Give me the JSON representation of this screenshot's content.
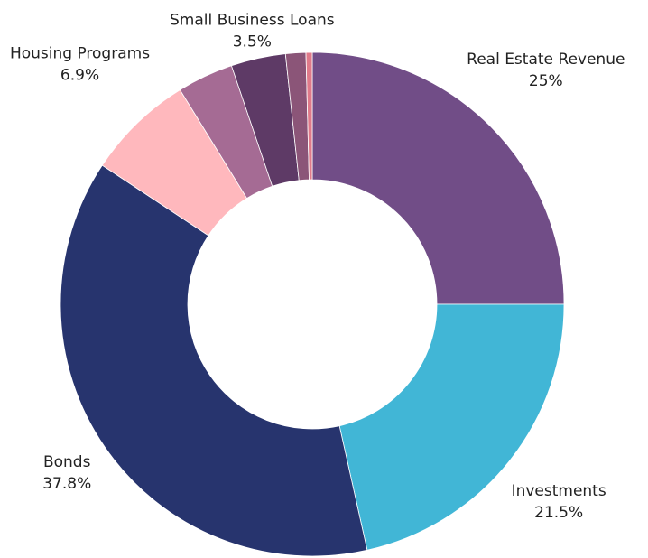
{
  "chart_data": {
    "type": "pie",
    "donut": true,
    "categories": [
      "Real Estate Revenue",
      "Investments",
      "Bonds",
      "Housing Programs",
      null,
      "Small Business Loans",
      null,
      null
    ],
    "values": [
      25,
      21.5,
      37.8,
      6.9,
      3.6,
      3.5,
      1.3,
      0.4
    ],
    "value_labels": [
      "25%",
      "21.5%",
      "37.8%",
      "6.9%",
      null,
      "3.5%",
      null,
      null
    ],
    "colors": [
      "#714d87",
      "#41b6d6",
      "#27346e",
      "#ffb8bd",
      "#a56b94",
      "#5e3a66",
      "#8b5578",
      "#e07a8a"
    ]
  }
}
